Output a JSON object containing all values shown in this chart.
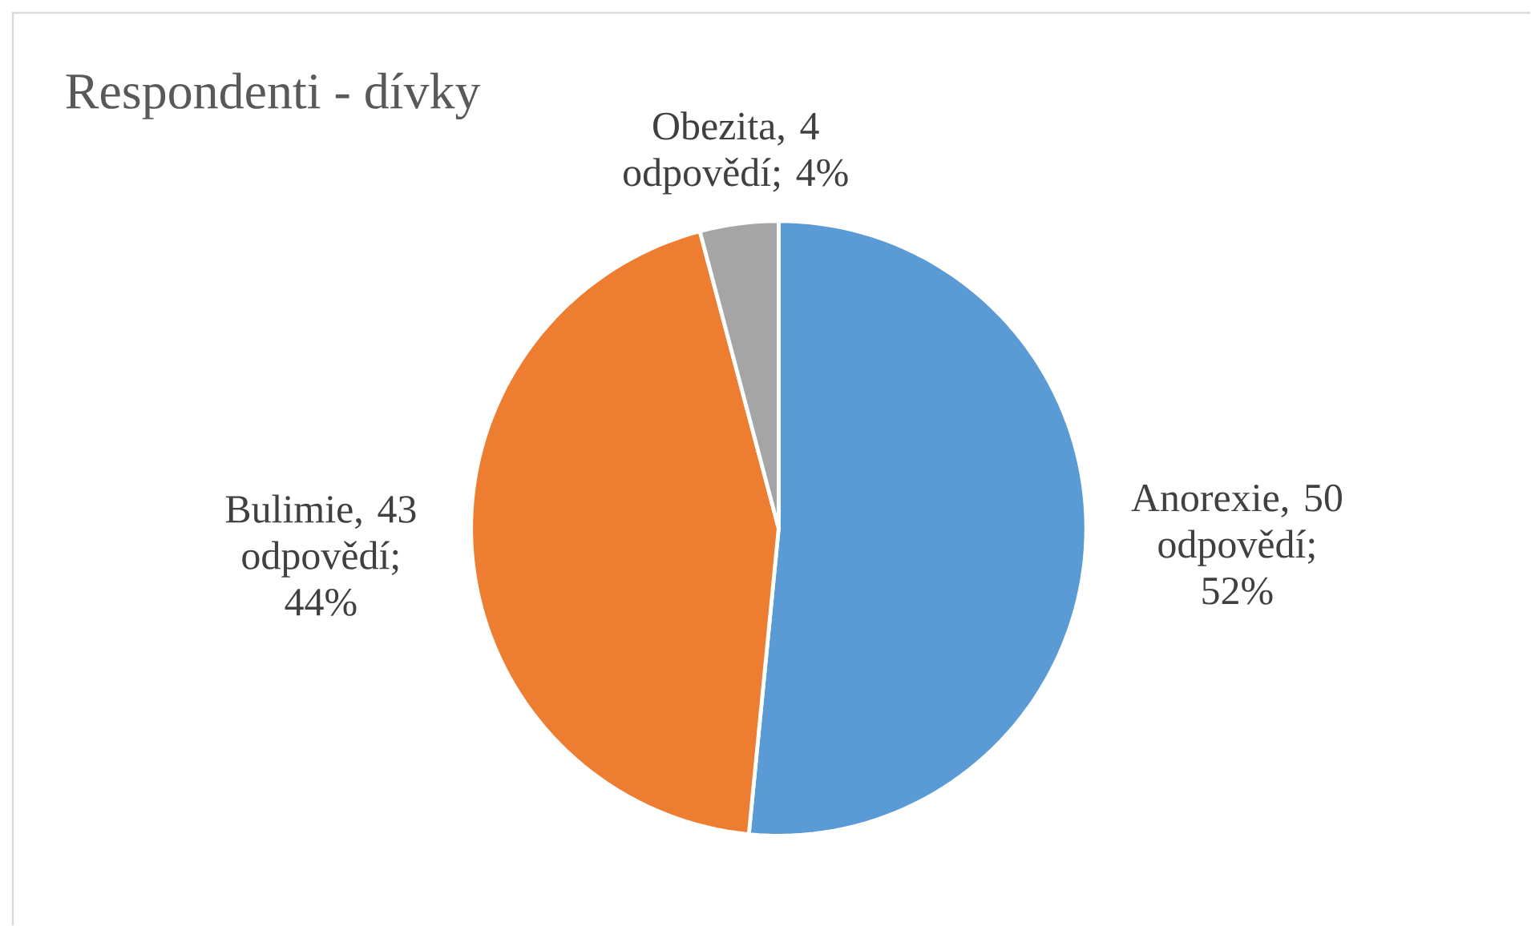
{
  "chart_data": {
    "type": "pie",
    "title": "Respondenti - dívky",
    "categories": [
      "Anorexie, 50 odpovědí; 52%",
      "Bulimie, 43 odpovědí; 44%",
      "Obezita, 4 odpovědí; 4%"
    ],
    "values": [
      50,
      43,
      4
    ],
    "colors": [
      "#5b9bd5",
      "#ed7d31",
      "#a5a5a5"
    ]
  }
}
